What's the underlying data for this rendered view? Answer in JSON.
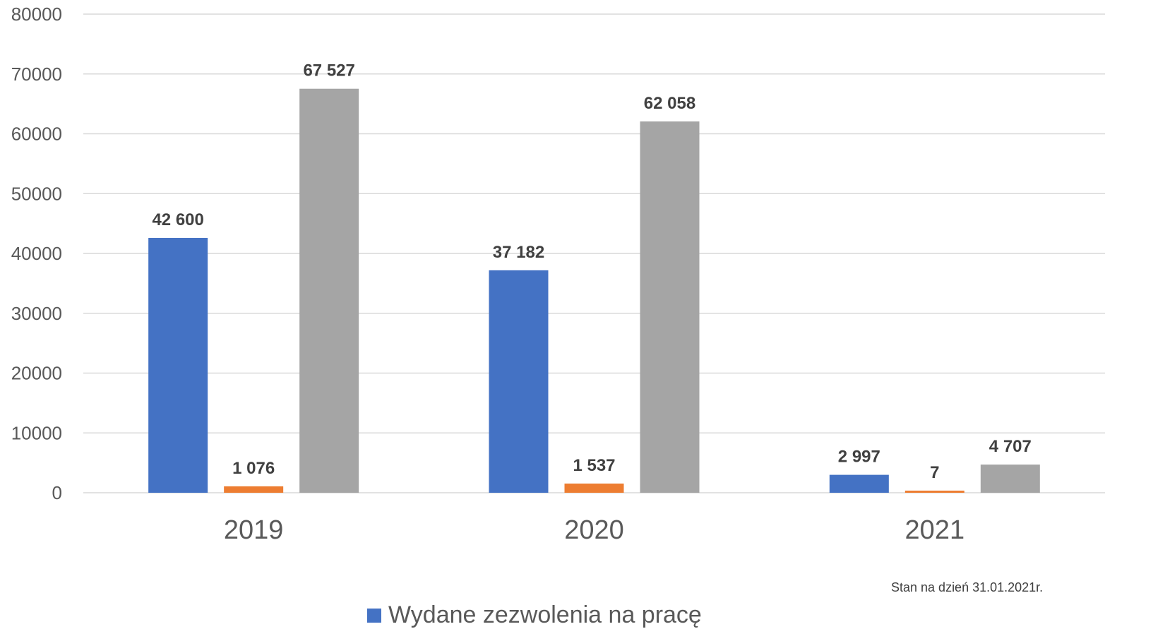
{
  "chart_data": {
    "type": "bar",
    "categories": [
      "2019",
      "2020",
      "2021"
    ],
    "series": [
      {
        "name": "Wydane zezwolenia na pracę",
        "color": "#4472C4",
        "values": [
          42600,
          37182,
          2997
        ],
        "labels": [
          "42 600",
          "37 182",
          "2 997"
        ]
      },
      {
        "name": "",
        "color": "#ED7D31",
        "values": [
          1076,
          1537,
          7
        ],
        "labels": [
          "1 076",
          "1 537",
          "7"
        ]
      },
      {
        "name": "",
        "color": "#A5A5A5",
        "values": [
          67527,
          62058,
          4707
        ],
        "labels": [
          "67 527",
          "62 058",
          "4 707"
        ]
      }
    ],
    "ylim": [
      0,
      80000
    ],
    "yticks": [
      0,
      10000,
      20000,
      30000,
      40000,
      50000,
      60000,
      70000,
      80000
    ],
    "ytick_labels": [
      "0",
      "10000",
      "20000",
      "30000",
      "40000",
      "50000",
      "60000",
      "70000",
      "80000"
    ],
    "grid": true,
    "legend_position": "bottom",
    "legend_label": "Wydane zezwolenia na pracę",
    "note": "Stan na dzień 31.01.2021r."
  }
}
